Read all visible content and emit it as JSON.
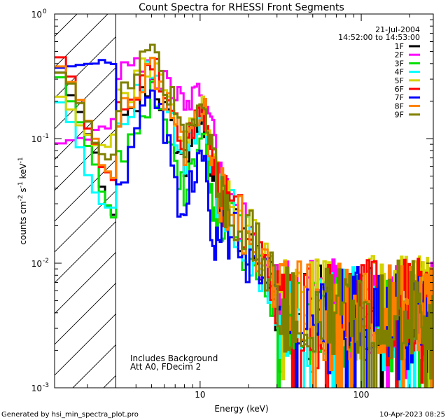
{
  "chart_data": {
    "type": "line",
    "title": "Count Spectra for RHESSI Front Segments",
    "xlabel": "Energy (keV)",
    "ylabel_main": "counts cm",
    "ylabel_exp1": "-2",
    "ylabel_mid": " s",
    "ylabel_exp2": "-1",
    "ylabel_end": " keV",
    "ylabel_exp3": "-1",
    "x_scale": "log",
    "y_scale": "log",
    "xlim": [
      1.25,
      280
    ],
    "ylim": [
      0.001,
      1
    ],
    "x_ticks": [
      {
        "value": 10,
        "label": "10"
      },
      {
        "value": 100,
        "label": "100"
      }
    ],
    "y_ticks": [
      {
        "value": 1,
        "base": "10",
        "exp": "0"
      },
      {
        "value": 0.1,
        "base": "10",
        "exp": "-1"
      },
      {
        "value": 0.01,
        "base": "10",
        "exp": "-2"
      },
      {
        "value": 0.001,
        "base": "10",
        "exp": "-3"
      }
    ],
    "attenuator_hatch_max_keV": 3.0,
    "date": "21-Jul-2004",
    "time_range": "14:52:00 to 14:53:00",
    "notes": [
      "Includes Background",
      "Att A0, FDecim 2"
    ],
    "series": [
      {
        "name": "1F",
        "color": "#000000",
        "low": [
          0.33,
          0.23,
          0.16,
          0.1,
          0.075,
          0.055,
          0.04,
          0.03,
          0.023
        ],
        "peak": 0.3,
        "valley": 0.026,
        "bump": 0.1,
        "tail": 0.004
      },
      {
        "name": "2F",
        "color": "#ff00ff",
        "low": [
          0.09,
          0.095,
          0.1,
          0.105,
          0.11,
          0.115,
          0.12,
          0.13,
          0.14
        ],
        "peak": 0.34,
        "valley": 0.085,
        "bump": 0.13,
        "tail": 0.0045
      },
      {
        "name": "3F",
        "color": "#00e000",
        "low": [
          0.3,
          0.2,
          0.13,
          0.085,
          0.06,
          0.045,
          0.035,
          0.028,
          0.024
        ],
        "peak": 0.23,
        "valley": 0.016,
        "bump": 0.08,
        "tail": 0.0035
      },
      {
        "name": "4F",
        "color": "#00ffff",
        "low": [
          0.19,
          0.13,
          0.08,
          0.055,
          0.04,
          0.034,
          0.03,
          0.028,
          0.03
        ],
        "peak": 0.4,
        "valley": 0.03,
        "bump": 0.1,
        "tail": 0.004
      },
      {
        "name": "5F",
        "color": "#d4d400",
        "low": [
          0.22,
          0.18,
          0.13,
          0.105,
          0.095,
          0.09,
          0.085,
          0.09,
          0.1
        ],
        "peak": 0.45,
        "valley": 0.045,
        "bump": 0.12,
        "tail": 0.005
      },
      {
        "name": "6F",
        "color": "#ff0000",
        "low": [
          0.42,
          0.3,
          0.2,
          0.13,
          0.095,
          0.075,
          0.06,
          0.05,
          0.045
        ],
        "peak": 0.42,
        "valley": 0.04,
        "bump": 0.11,
        "tail": 0.0045
      },
      {
        "name": "7F",
        "color": "#0000ff",
        "low": [
          0.36,
          0.37,
          0.39,
          0.4,
          0.41,
          0.41,
          0.4,
          0.39,
          0.38
        ],
        "peak": 0.3,
        "valley": 0.008,
        "bump": 0.06,
        "tail": 0.004
      },
      {
        "name": "8F",
        "color": "#ff8000",
        "low": [
          0.4,
          0.28,
          0.19,
          0.13,
          0.1,
          0.08,
          0.065,
          0.055,
          0.05
        ],
        "peak": 0.38,
        "valley": 0.038,
        "bump": 0.12,
        "tail": 0.0045
      },
      {
        "name": "9F",
        "color": "#808000",
        "low": [
          0.35,
          0.26,
          0.18,
          0.13,
          0.1,
          0.085,
          0.075,
          0.07,
          0.07
        ],
        "peak": 0.5,
        "valley": 0.05,
        "bump": 0.11,
        "tail": 0.0045
      }
    ]
  },
  "footer": {
    "generated_by": "Generated by hsi_min_spectra_plot.pro",
    "timestamp": "10-Apr-2023 08:25"
  }
}
